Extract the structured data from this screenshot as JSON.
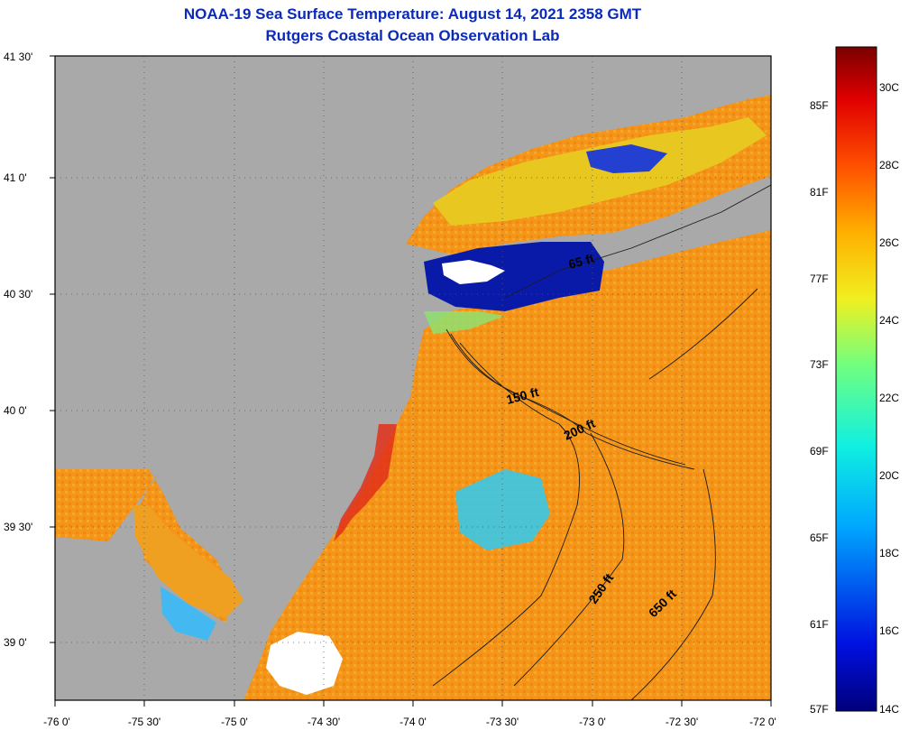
{
  "header": {
    "title": "NOAA-19 Sea Surface Temperature:  August 14, 2021 2358 GMT",
    "subtitle": "Rutgers Coastal Ocean Observation Lab"
  },
  "axes": {
    "lat_labels": [
      "41 30'",
      "41 0'",
      "40 30'",
      "40 0'",
      "39 30'",
      "39 0'"
    ],
    "lon_labels": [
      "-76 0'",
      "-75 30'",
      "-75 0'",
      "-74 30'",
      "-74 0'",
      "-73 30'",
      "-73 0'",
      "-72 30'",
      "-72 0'"
    ]
  },
  "colorbar": {
    "fahrenheit_labels": [
      "85F",
      "81F",
      "77F",
      "73F",
      "69F",
      "65F",
      "61F",
      "57F"
    ],
    "celsius_labels": [
      "30C",
      "28C",
      "26C",
      "24C",
      "22C",
      "20C",
      "18C",
      "16C",
      "14C"
    ],
    "range_c": [
      14,
      31
    ]
  },
  "isobaths": {
    "labels": [
      "65 ft",
      "150 ft",
      "200 ft",
      "250 ft",
      "650 ft"
    ]
  },
  "colors": {
    "land": "#a9a9a9",
    "warm_water": "#f79a1e",
    "cold_water": "#0a1aa8",
    "cloud": "#ffffff",
    "title": "#0b2ab8"
  }
}
